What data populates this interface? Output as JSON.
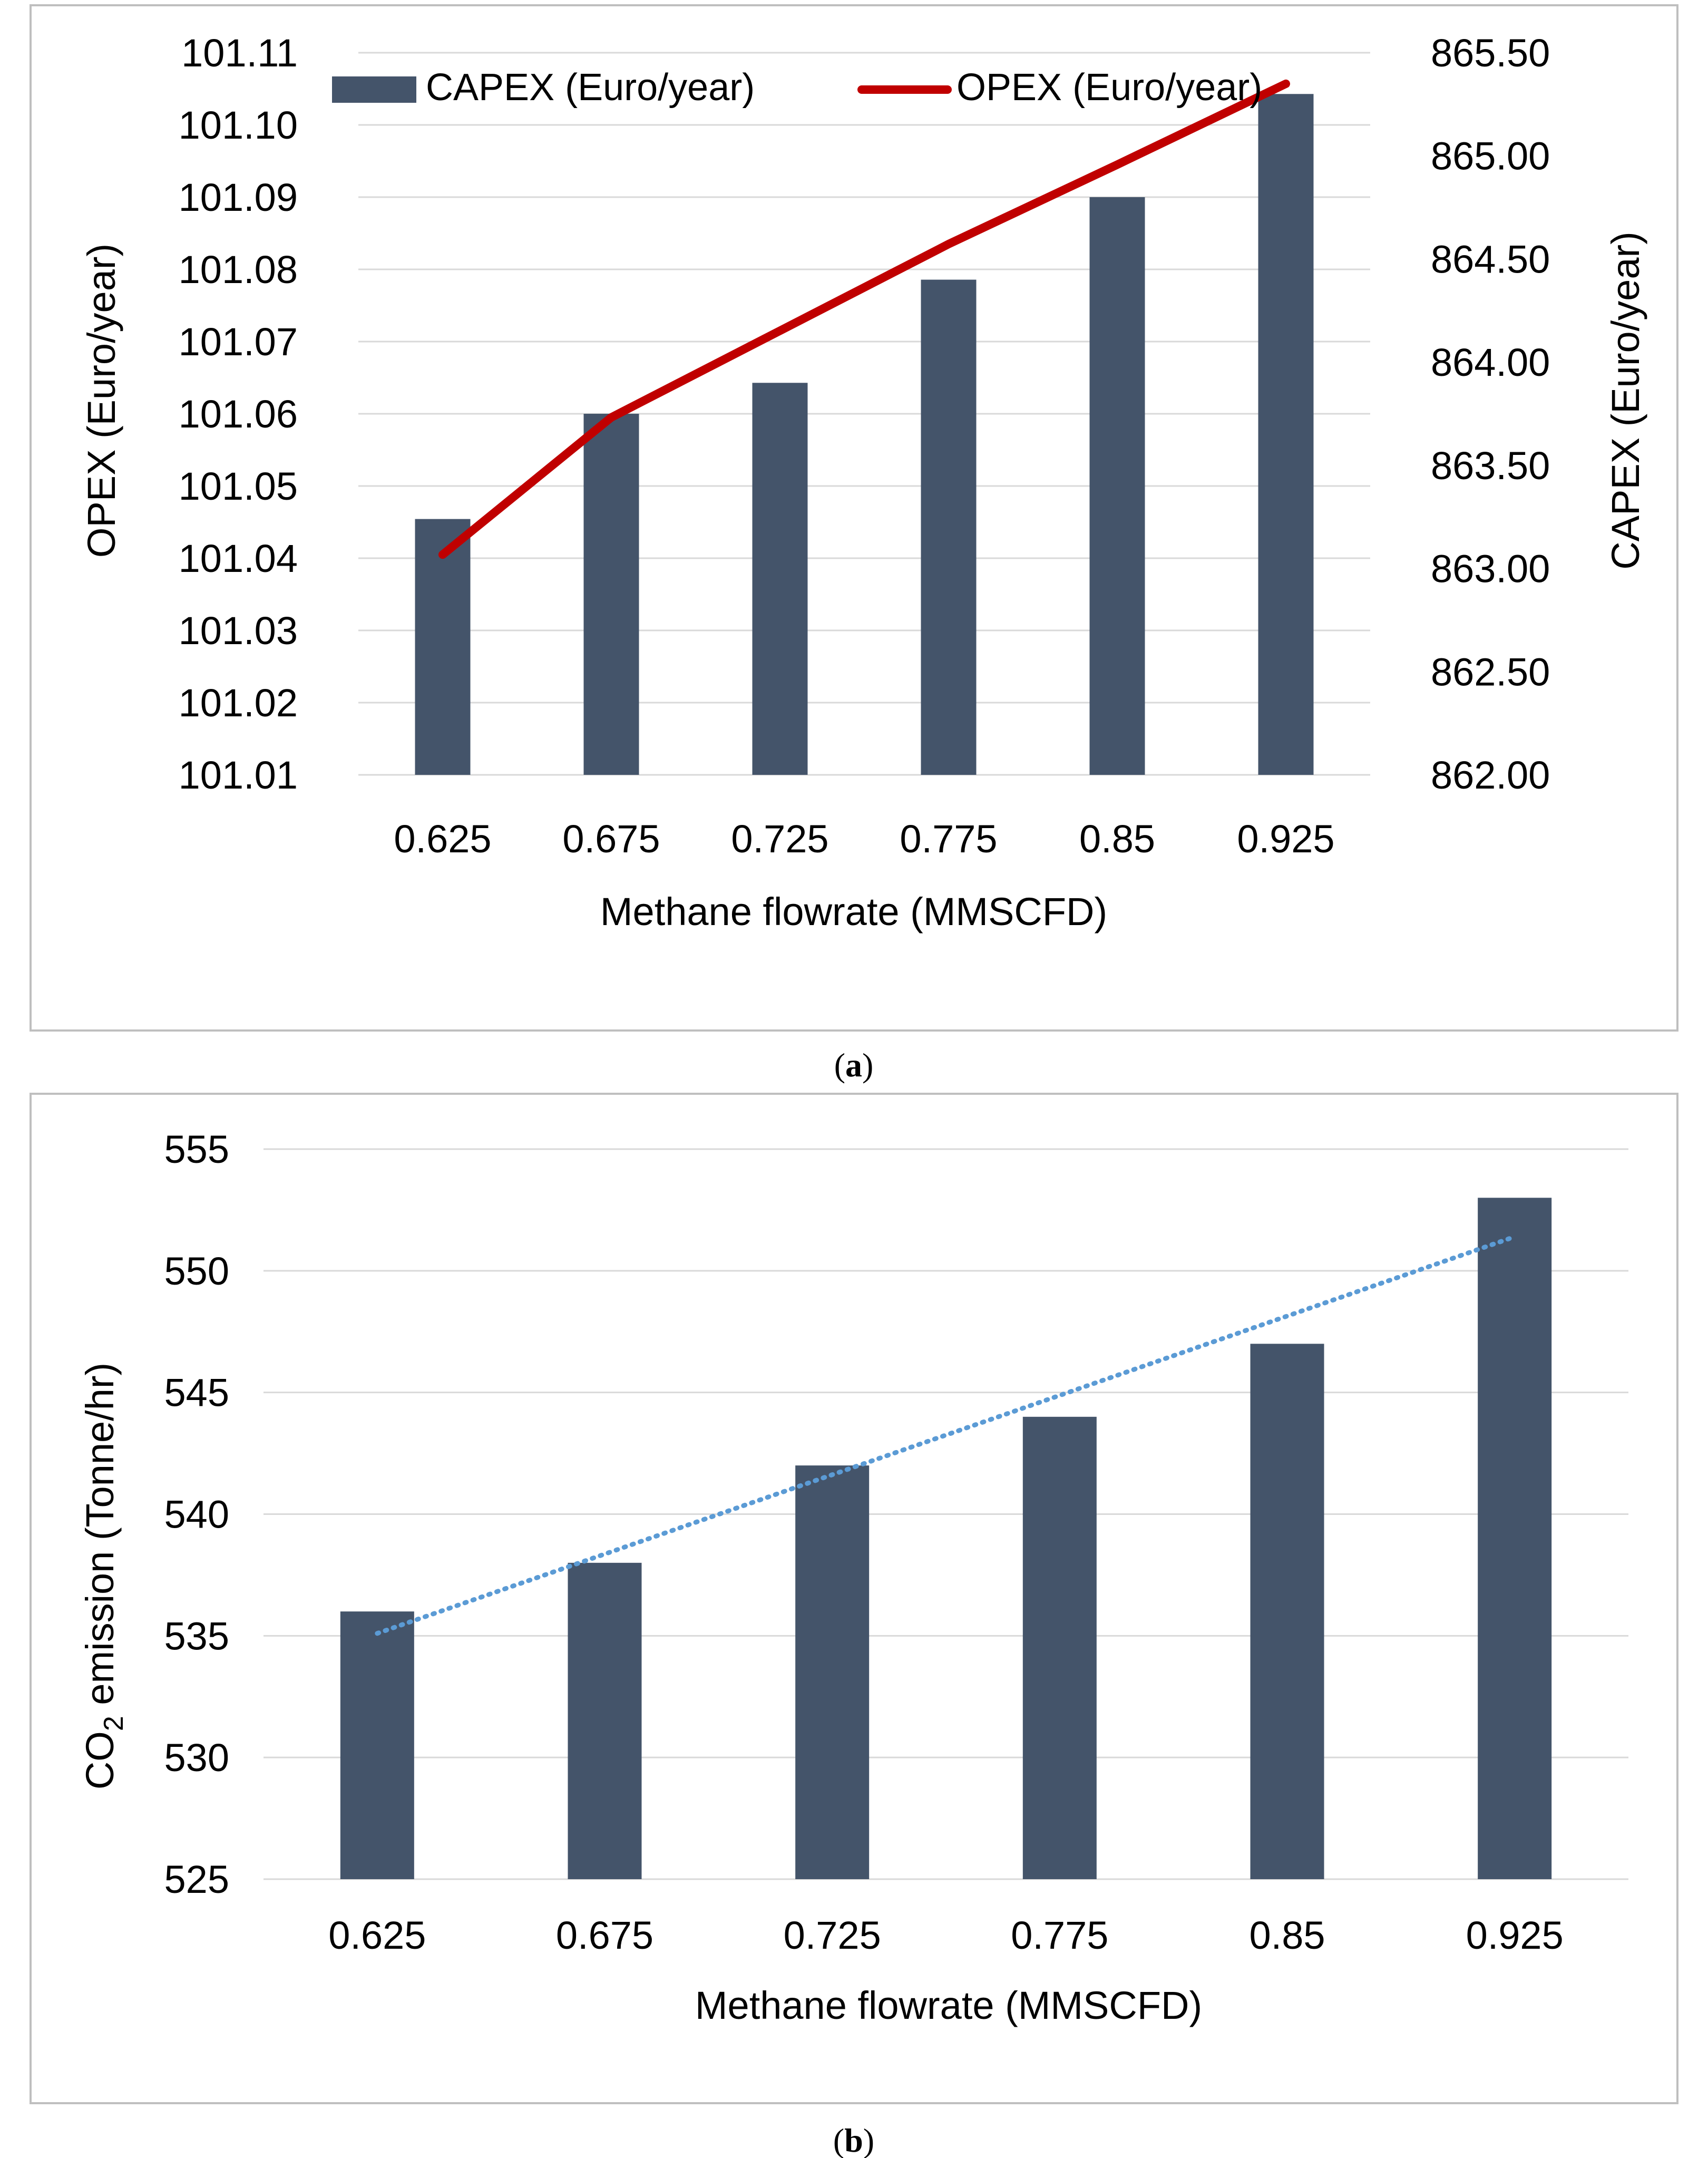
{
  "colors": {
    "bar": "#44546a",
    "opex_line": "#c00000",
    "trend_line": "#5b9bd5",
    "grid": "#d9d9d9",
    "frame": "#bfbfbf",
    "text": "#000000"
  },
  "chart_data": [
    {
      "type": "bar+line",
      "panel_label": "a",
      "categories": [
        "0.625",
        "0.675",
        "0.725",
        "0.775",
        "0.85",
        "0.925"
      ],
      "xlabel": "Methane flowrate (MMSCFD)",
      "ylabel_left": "OPEX (Euro/year)",
      "ylabel_right": "CAPEX (Euro/year)",
      "ylim_left": [
        101.01,
        101.11
      ],
      "ylim_right": [
        862.0,
        865.5
      ],
      "yticks_left": [
        "101.01",
        "101.02",
        "101.03",
        "101.04",
        "101.05",
        "101.06",
        "101.07",
        "101.08",
        "101.09",
        "101.10",
        "101.11"
      ],
      "yticks_right": [
        "862.00",
        "862.50",
        "863.00",
        "863.50",
        "864.00",
        "864.50",
        "865.00",
        "865.50"
      ],
      "grid": true,
      "legend_position": "top",
      "series": [
        {
          "name": "CAPEX (Euro/year)",
          "kind": "bar",
          "axis": "right",
          "values": [
            863.24,
            863.75,
            863.9,
            864.4,
            864.8,
            865.3
          ]
        },
        {
          "name": "OPEX (Euro/year)",
          "kind": "line",
          "axis": "left",
          "values": [
            101.0405,
            101.0595,
            101.0715,
            101.0835,
            101.0945,
            101.1057
          ]
        }
      ]
    },
    {
      "type": "bar",
      "panel_label": "b",
      "categories": [
        "0.625",
        "0.675",
        "0.725",
        "0.775",
        "0.85",
        "0.925"
      ],
      "xlabel": "Methane flowrate (MMSCFD)",
      "ylabel_main": "CO",
      "ylabel_sub": "2",
      "ylabel_rest": " emission (Tonne/hr)",
      "ylim": [
        525,
        555
      ],
      "yticks": [
        "525",
        "530",
        "535",
        "540",
        "545",
        "550",
        "555"
      ],
      "grid": true,
      "series": [
        {
          "name": "CO2 emission",
          "kind": "bar",
          "values": [
            536,
            538,
            542,
            544,
            547,
            553
          ]
        }
      ],
      "trendline": {
        "kind": "linear",
        "style": "dotted",
        "start": 535.1,
        "end": 551.4
      }
    }
  ]
}
